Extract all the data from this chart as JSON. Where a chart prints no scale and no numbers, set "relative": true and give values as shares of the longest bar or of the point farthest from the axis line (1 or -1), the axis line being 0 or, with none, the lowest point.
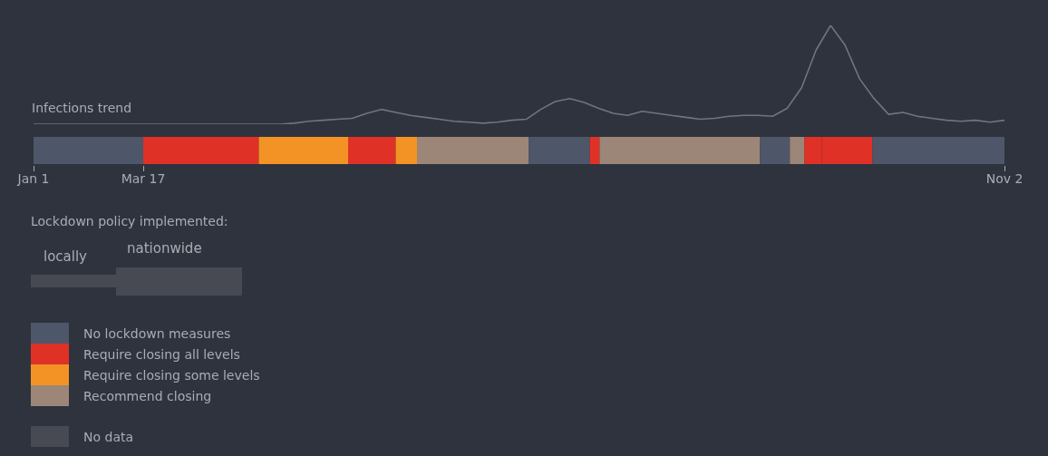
{
  "chart_data": [
    {
      "type": "line",
      "relative": true,
      "marker": "none",
      "categories": [
        null,
        null,
        null,
        null,
        null,
        null,
        null,
        null,
        null,
        null,
        null,
        null,
        null,
        null,
        null,
        null,
        null,
        null,
        null,
        null,
        null,
        null,
        null,
        null,
        null,
        null,
        null,
        null,
        null,
        null,
        null,
        null,
        null,
        null,
        null,
        null,
        null,
        null,
        null,
        null,
        null,
        null,
        null,
        null,
        null,
        null,
        null,
        null,
        null,
        null,
        null,
        null,
        null,
        null,
        null,
        null,
        null,
        null,
        null,
        null,
        null,
        null,
        null,
        null,
        null,
        null,
        null,
        null
      ],
      "series": [
        {
          "name": "Infections trend",
          "color": "#70757d",
          "values": [
            0,
            0,
            0,
            0,
            0,
            0,
            0,
            0,
            0,
            0,
            0,
            0,
            0,
            0,
            0,
            0,
            0,
            0,
            0.01,
            0.03,
            0.04,
            0.05,
            0.06,
            0.11,
            0.15,
            0.12,
            0.09,
            0.07,
            0.05,
            0.03,
            0.02,
            0.01,
            0.02,
            0.04,
            0.05,
            0.15,
            0.23,
            0.26,
            0.22,
            0.16,
            0.11,
            0.09,
            0.13,
            0.11,
            0.09,
            0.07,
            0.05,
            0.06,
            0.08,
            0.09,
            0.09,
            0.08,
            0.16,
            0.37,
            0.75,
            1,
            0.8,
            0.46,
            0.26,
            0.1,
            0.12,
            0.08,
            0.06,
            0.04,
            0.03,
            0.04,
            0.02,
            0.04
          ]
        }
      ]
    },
    {
      "type": "bar",
      "orientation": "horizontal",
      "stacked": true,
      "relative": true,
      "categories": [
        null
      ],
      "legend": "bottom",
      "annotations": [
        "Lockdown policy implemented:",
        "locally",
        "nationwide",
        "Jan 1",
        "Mar 17",
        "Nov 2"
      ],
      "series": [
        {
          "name": "No lockdown measures",
          "color": "#4e5669",
          "values": [
            0.113
          ]
        },
        {
          "name": "Require closing all levels",
          "color": "#e03127",
          "values": [
            0.119
          ]
        },
        {
          "name": "Require closing some levels",
          "color": "#f39325",
          "values": [
            0.092
          ]
        },
        {
          "color": "#e03127",
          "values": [
            0.049
          ]
        },
        {
          "color": "#f39325",
          "values": [
            0.022
          ]
        },
        {
          "name": "Recommend closing",
          "color": "#9c8677",
          "values": [
            0.115
          ]
        },
        {
          "color": "#4e5669",
          "values": [
            0.063
          ]
        },
        {
          "color": "#e03127",
          "values": [
            0.01
          ]
        },
        {
          "color": "#9c8677",
          "values": [
            0.165
          ]
        },
        {
          "color": "#4e5669",
          "values": [
            0.031
          ]
        },
        {
          "color": "#9c8677",
          "values": [
            0.015
          ]
        },
        {
          "color": "#e03127",
          "values": [
            0.018
          ]
        },
        {
          "color": "#e03127",
          "values": [
            0.052
          ]
        },
        {
          "color": "#4e5669",
          "values": [
            0.136
          ]
        },
        {
          "name": "No data",
          "color": "#474a52",
          "values": [
            null
          ]
        }
      ]
    }
  ]
}
